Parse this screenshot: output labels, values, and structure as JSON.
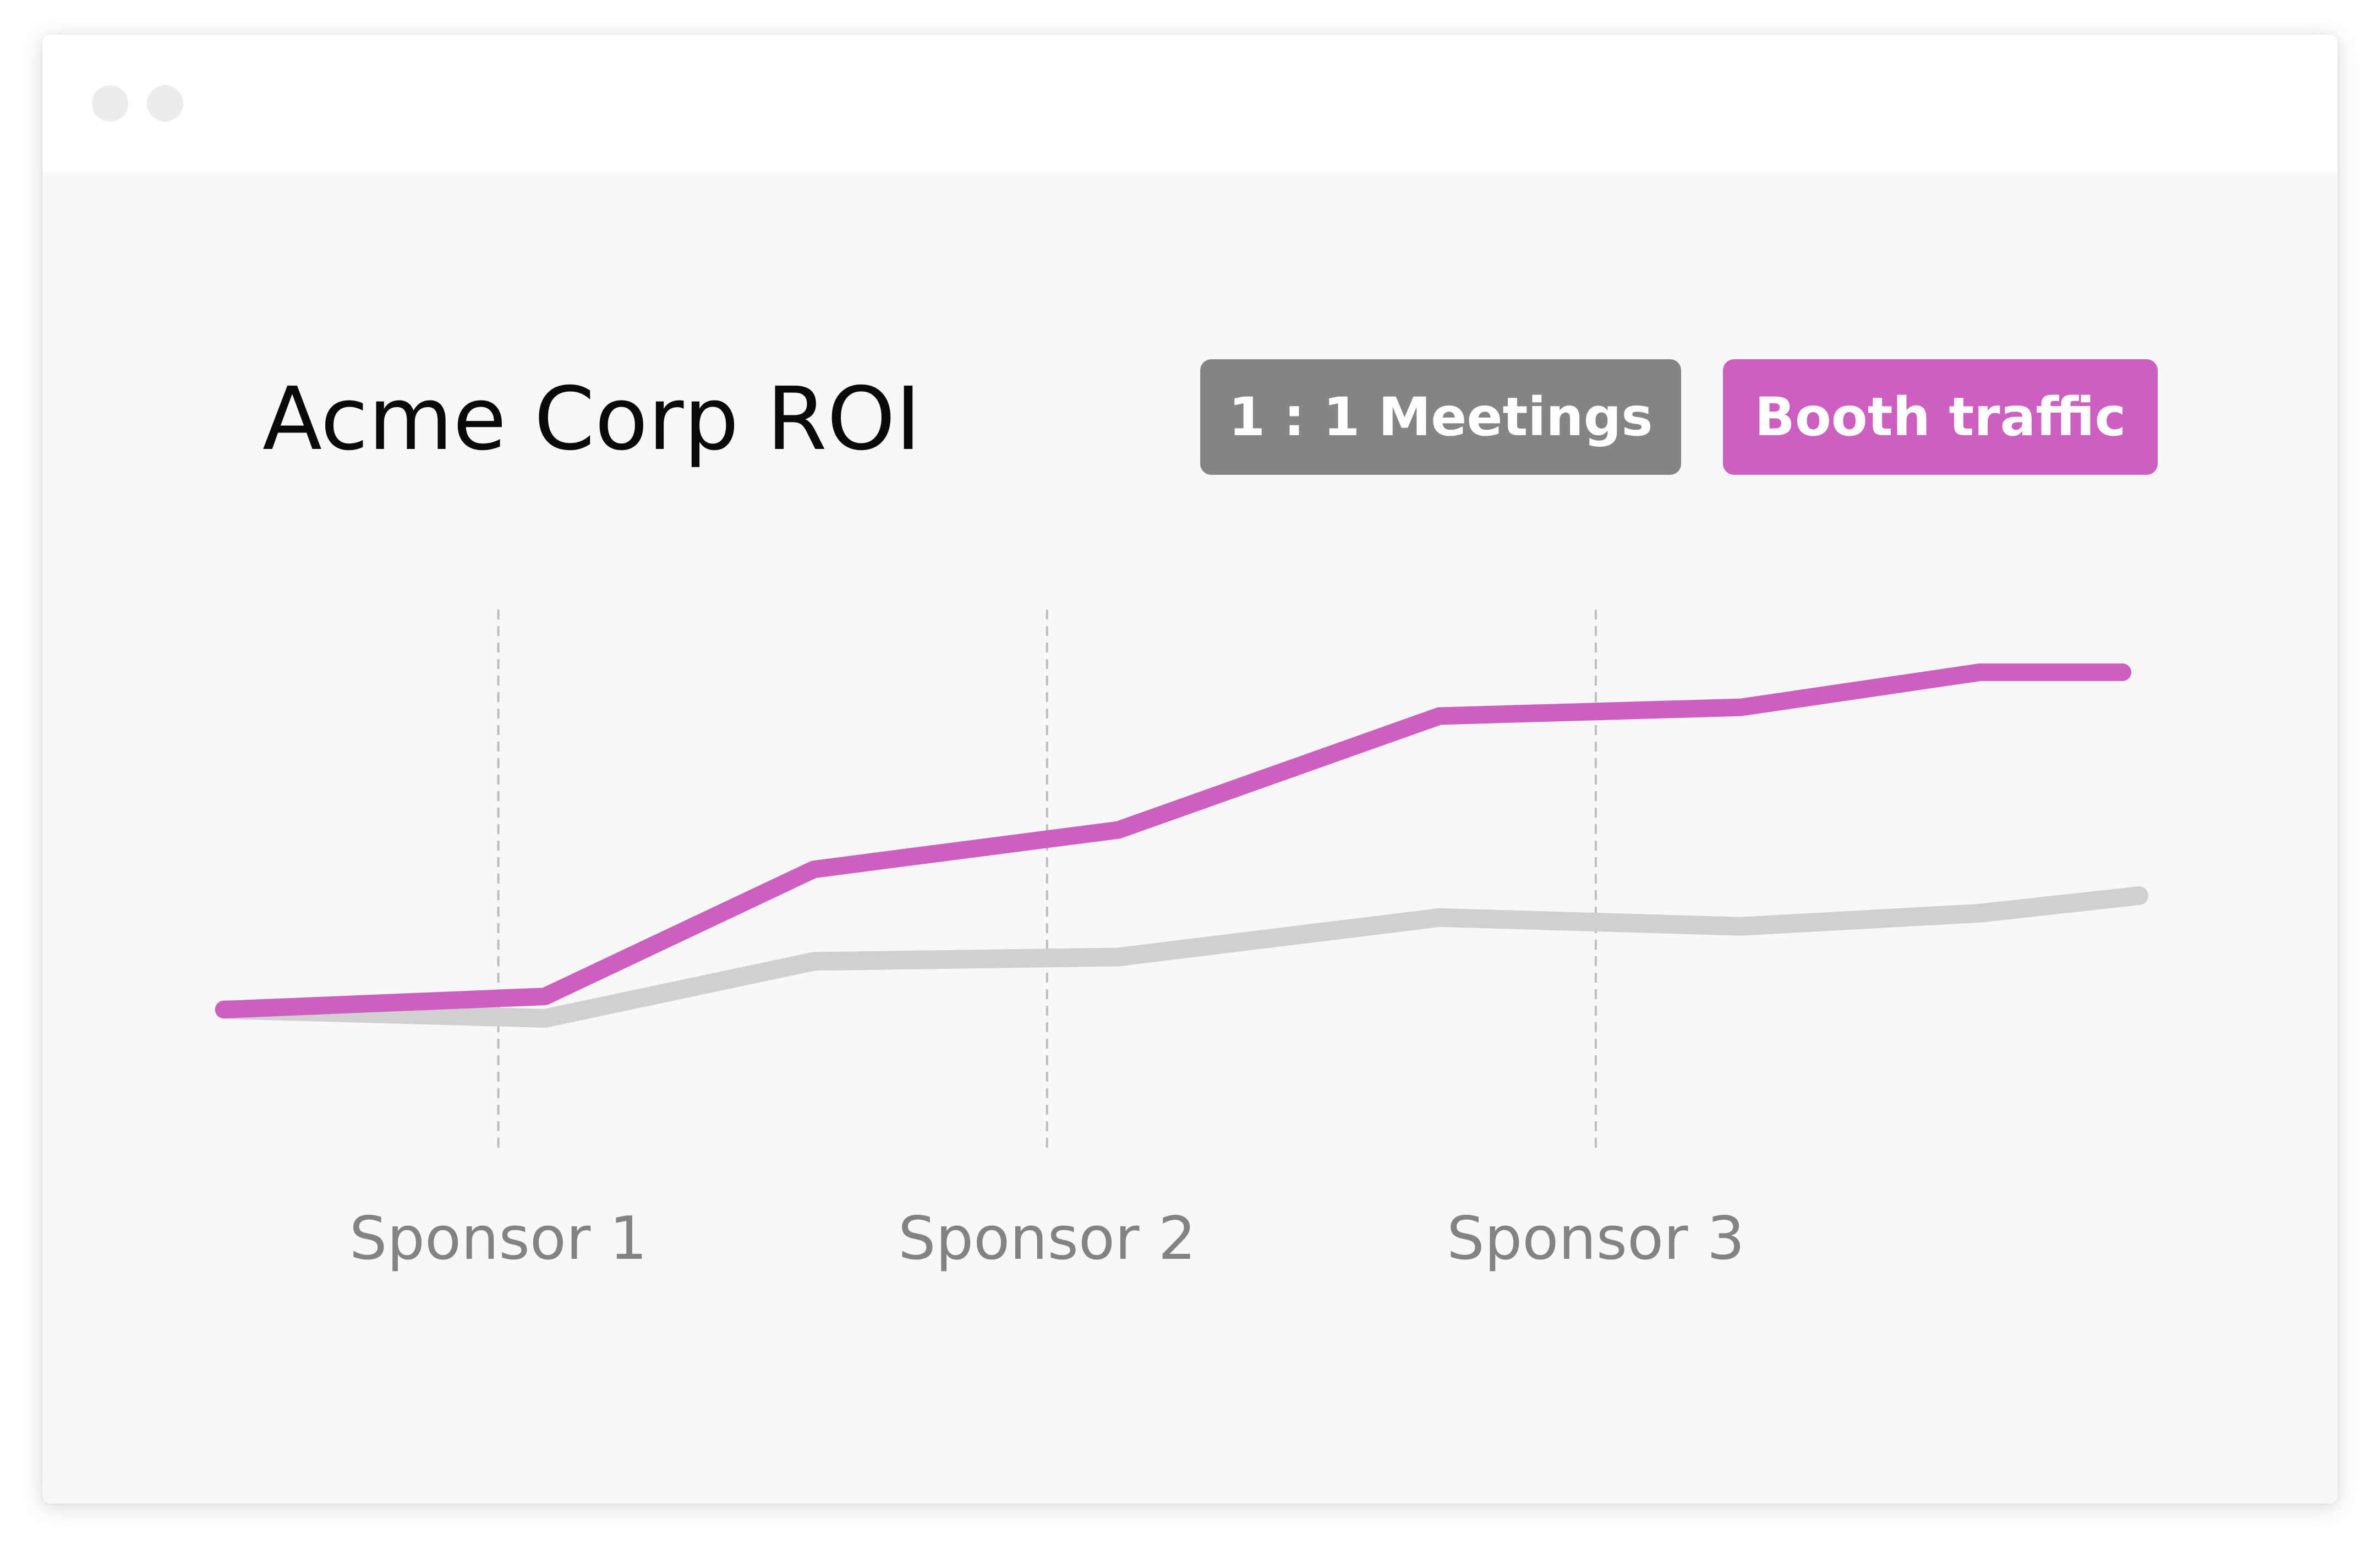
{
  "window": {
    "controls": [
      "close-dot",
      "minimize-dot"
    ]
  },
  "chart_data": {
    "type": "line",
    "title": "Acme Corp ROI",
    "categories": [
      "Sponsor 1",
      "Sponsor 2",
      "Sponsor 3"
    ],
    "legend_placement": "top-right",
    "grid": "dashed vertical lines at each category",
    "series": [
      {
        "name": "1 : 1 Meetings",
        "color": "#d0d0d0",
        "x": [
          0,
          1.17,
          2.15,
          3.26,
          4.43,
          5.53,
          6.4,
          6.98
        ],
        "values": [
          0,
          -0.2,
          1.1,
          1.2,
          2.1,
          1.9,
          2.2,
          2.6
        ]
      },
      {
        "name": "Booth traffic",
        "color": "#cc5fbf",
        "x": [
          0,
          1.17,
          2.15,
          3.26,
          4.43,
          5.53,
          6.4,
          6.92
        ],
        "values": [
          0,
          0.3,
          3.2,
          4.1,
          6.7,
          6.9,
          7.7,
          7.7
        ]
      }
    ],
    "category_positions": [
      1,
      3,
      5
    ]
  }
}
